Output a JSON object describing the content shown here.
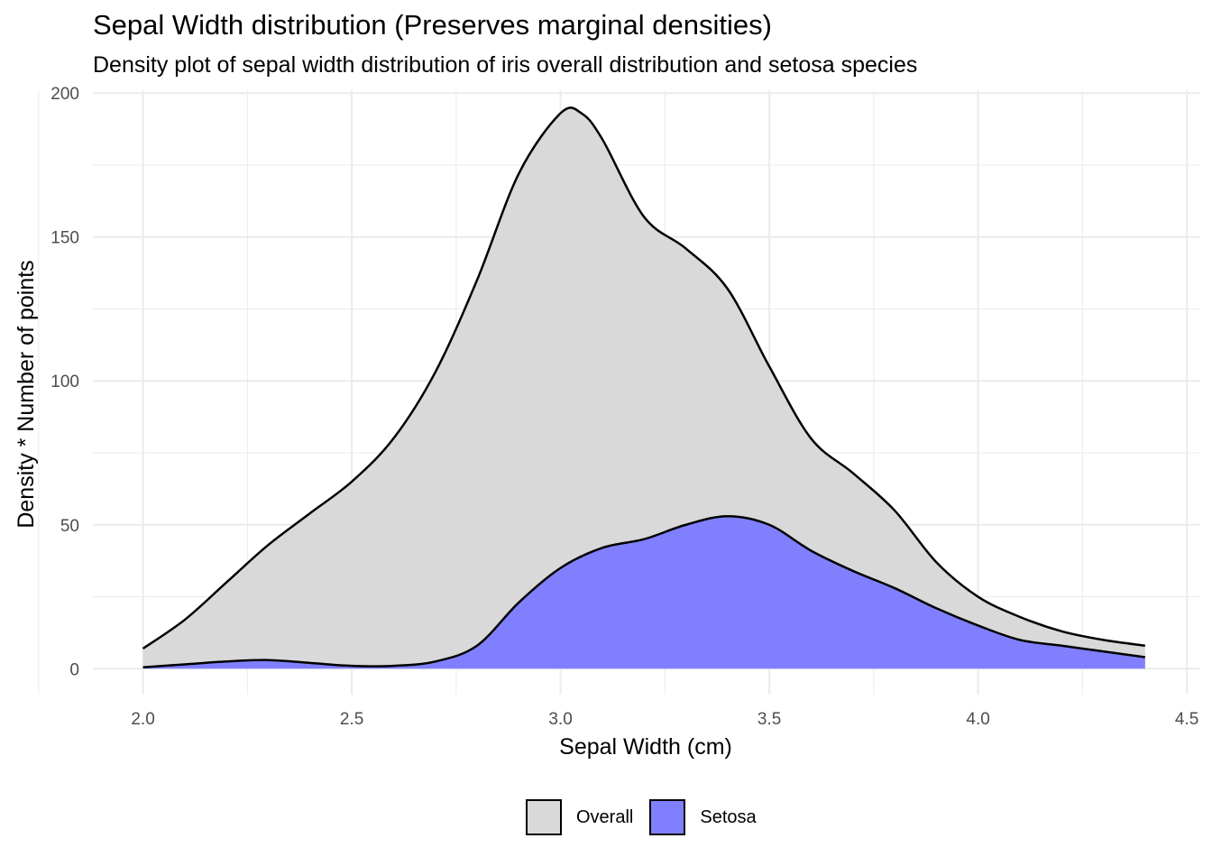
{
  "title": "Sepal Width distribution (Preserves marginal densities)",
  "subtitle": "Density plot of sepal width distribution of iris overall distribution and setosa species",
  "chart_data": {
    "type": "area",
    "title": "Sepal Width distribution (Preserves marginal densities)",
    "subtitle": "Density plot of sepal width distribution of iris overall distribution and setosa species",
    "xlabel": "Sepal Width (cm)",
    "ylabel": "Density * Number of points",
    "xlim": [
      1.88,
      4.53
    ],
    "ylim": [
      -9,
      201
    ],
    "x_ticks": [
      "2.0",
      "2.5",
      "3.0",
      "3.5",
      "4.0",
      "4.5"
    ],
    "y_ticks": [
      "0",
      "50",
      "100",
      "150",
      "200"
    ],
    "grid": true,
    "legend_position": "bottom",
    "series": [
      {
        "name": "Overall",
        "fill": "#d9d9d9",
        "x": [
          2.0,
          2.1,
          2.2,
          2.3,
          2.4,
          2.5,
          2.6,
          2.7,
          2.8,
          2.9,
          3.0,
          3.05,
          3.1,
          3.2,
          3.3,
          3.4,
          3.5,
          3.6,
          3.7,
          3.8,
          3.9,
          4.0,
          4.1,
          4.2,
          4.3,
          4.4
        ],
        "y": [
          7,
          17,
          30,
          43,
          54,
          65,
          80,
          103,
          135,
          172,
          193,
          193,
          184,
          157,
          146,
          132,
          105,
          80,
          68,
          55,
          37,
          25,
          18,
          13,
          10,
          8
        ]
      },
      {
        "name": "Setosa",
        "fill": "#8080ff",
        "x": [
          2.0,
          2.1,
          2.2,
          2.3,
          2.4,
          2.5,
          2.6,
          2.7,
          2.8,
          2.9,
          3.0,
          3.1,
          3.2,
          3.3,
          3.4,
          3.5,
          3.6,
          3.7,
          3.8,
          3.9,
          4.0,
          4.1,
          4.2,
          4.3,
          4.4
        ],
        "y": [
          0.5,
          1.5,
          2.5,
          3,
          2,
          1,
          1,
          2.5,
          8,
          23,
          35,
          42,
          45,
          50,
          53,
          50,
          41,
          34,
          28,
          21,
          15,
          10,
          8,
          6,
          4
        ]
      }
    ]
  },
  "legend": [
    {
      "label": "Overall",
      "color": "#d9d9d9"
    },
    {
      "label": "Setosa",
      "color": "#8080ff"
    }
  ]
}
